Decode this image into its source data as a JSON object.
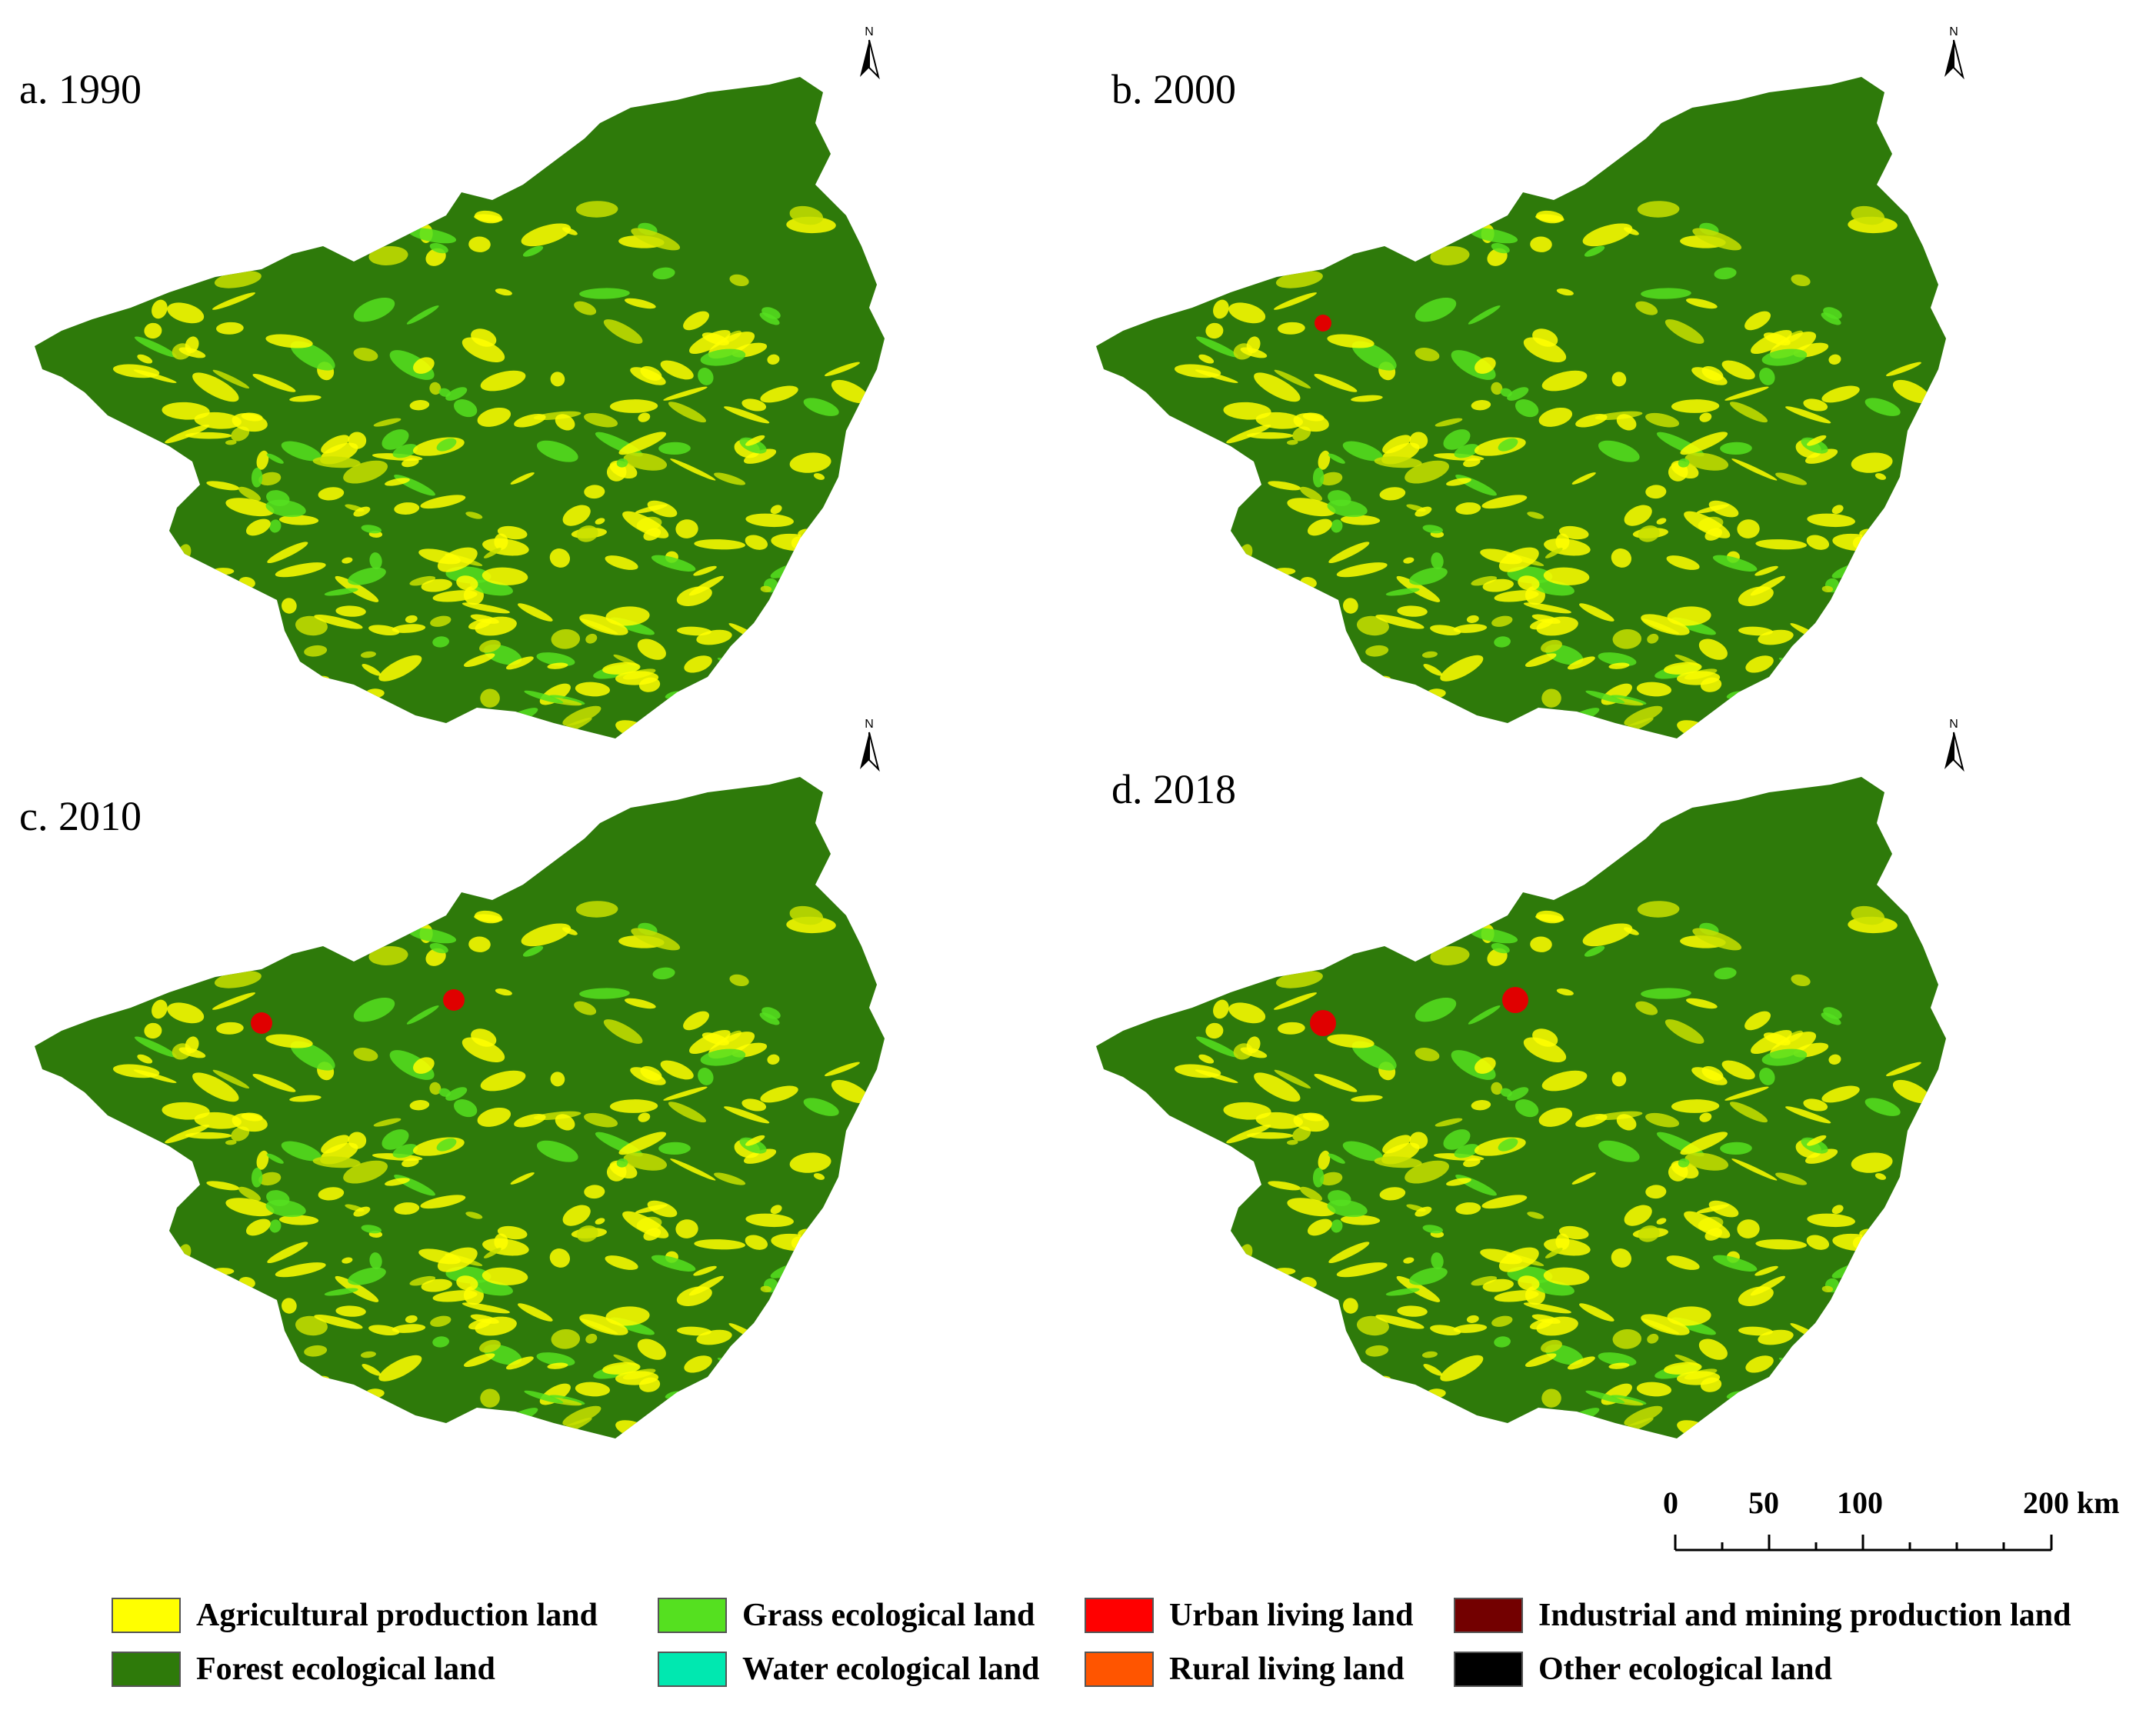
{
  "panels": [
    {
      "label": "a. 1990"
    },
    {
      "label": "b. 2000"
    },
    {
      "label": "c. 2010"
    },
    {
      "label": "d. 2018"
    }
  ],
  "north_arrow_label": "N",
  "scale_bar": {
    "labels": [
      "0",
      "50",
      "100",
      "200 km"
    ]
  },
  "legend": [
    {
      "label": "Agricultural production land",
      "color": "#ffff00"
    },
    {
      "label": "Grass ecological land",
      "color": "#55e020"
    },
    {
      "label": "Urban living land",
      "color": "#ff0000"
    },
    {
      "label": "Industrial and mining production land",
      "color": "#730000"
    },
    {
      "label": "Forest ecological land",
      "color": "#2e7a0a"
    },
    {
      "label": "Water ecological land",
      "color": "#00e8b0"
    },
    {
      "label": "Rural living land",
      "color": "#ff5500"
    },
    {
      "label": "Other ecological land",
      "color": "#000000"
    }
  ]
}
